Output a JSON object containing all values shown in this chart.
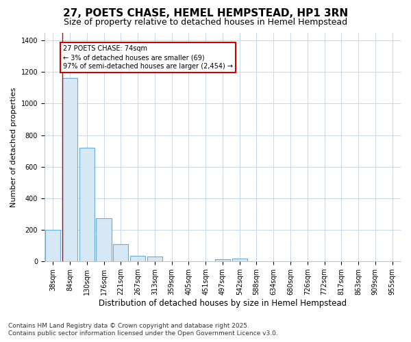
{
  "title_line1": "27, POETS CHASE, HEMEL HEMPSTEAD, HP1 3RN",
  "title_line2": "Size of property relative to detached houses in Hemel Hempstead",
  "xlabel": "Distribution of detached houses by size in Hemel Hempstead",
  "ylabel": "Number of detached properties",
  "footer_line1": "Contains HM Land Registry data © Crown copyright and database right 2025.",
  "footer_line2": "Contains public sector information licensed under the Open Government Licence v3.0.",
  "categories": [
    "38sqm",
    "84sqm",
    "130sqm",
    "176sqm",
    "221sqm",
    "267sqm",
    "313sqm",
    "359sqm",
    "405sqm",
    "451sqm",
    "497sqm",
    "542sqm",
    "588sqm",
    "634sqm",
    "680sqm",
    "726sqm",
    "772sqm",
    "817sqm",
    "863sqm",
    "909sqm",
    "955sqm"
  ],
  "values": [
    200,
    1160,
    720,
    275,
    110,
    35,
    30,
    0,
    0,
    0,
    15,
    20,
    0,
    0,
    0,
    0,
    0,
    0,
    0,
    0,
    0
  ],
  "bar_color": "#d6e8f5",
  "bar_edge_color": "#6aaad4",
  "grid_color": "#c8d8e8",
  "background_color": "#ffffff",
  "annotation_text": "27 POETS CHASE: 74sqm\n← 3% of detached houses are smaller (69)\n97% of semi-detached houses are larger (2,454) →",
  "annotation_box_color": "#ffffff",
  "annotation_border_color": "#cc0000",
  "red_line_x": 0.5,
  "ylim": [
    0,
    1450
  ],
  "yticks": [
    0,
    200,
    400,
    600,
    800,
    1000,
    1200,
    1400
  ],
  "title1_fontsize": 11,
  "title2_fontsize": 9,
  "tick_fontsize": 7,
  "ylabel_fontsize": 8,
  "xlabel_fontsize": 8.5,
  "footer_fontsize": 6.5
}
